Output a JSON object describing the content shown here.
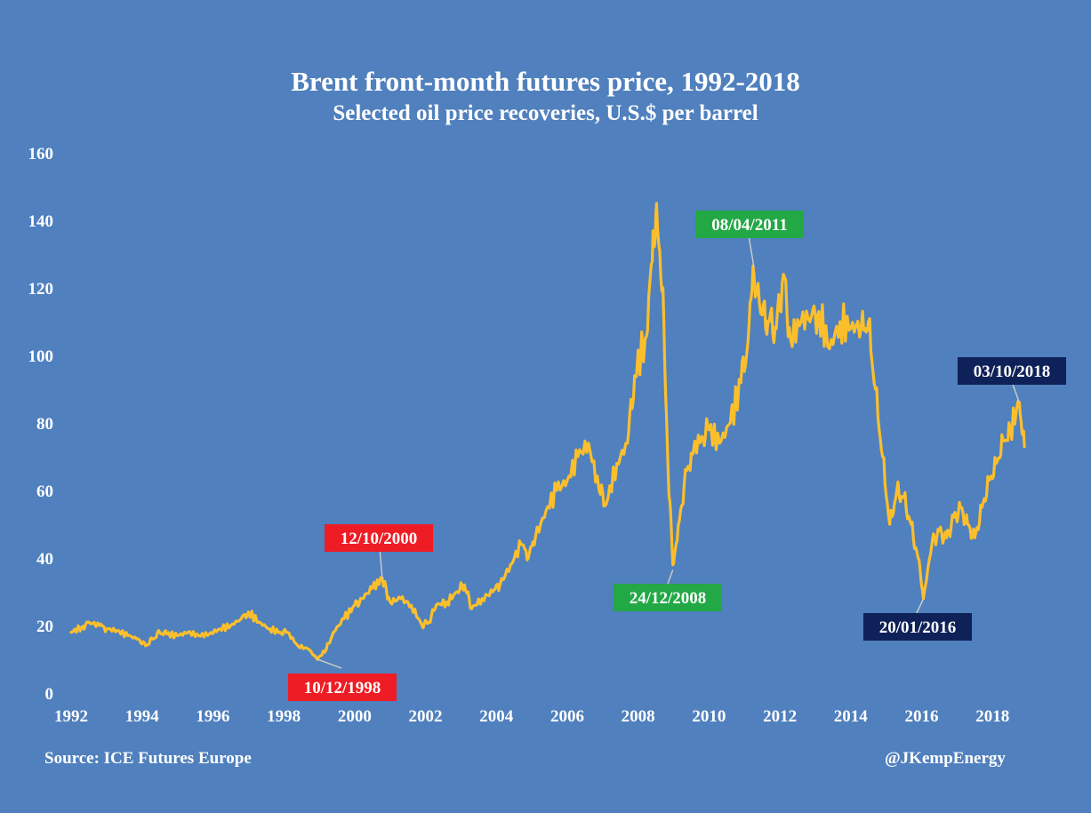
{
  "header": {
    "title": "Brent front-month futures price, 1992-2018",
    "subtitle": "Selected oil price recoveries, U.S.$ per barrel"
  },
  "footer": {
    "source": "Source: ICE Futures Europe",
    "credit": "@JKempEnergy"
  },
  "colors": {
    "background": "#5080bd",
    "line": "#fcbf2c",
    "red": "#ee1c24",
    "green": "#22a845",
    "navy": "#0e2158",
    "text": "#ffffff",
    "leader": "#c9c9c9"
  },
  "chart_data": {
    "type": "line",
    "title": "Brent front-month futures price, 1992-2018",
    "subtitle": "Selected oil price recoveries, U.S.$ per barrel",
    "xlabel": "",
    "ylabel": "",
    "xlim": [
      1992,
      2019.5
    ],
    "ylim": [
      0,
      160
    ],
    "x_ticks": [
      "1992",
      "1994",
      "1996",
      "1998",
      "2000",
      "2002",
      "2004",
      "2006",
      "2008",
      "2010",
      "2012",
      "2014",
      "2016",
      "2018"
    ],
    "y_ticks": [
      "0",
      "20",
      "40",
      "60",
      "80",
      "100",
      "120",
      "140",
      "160"
    ],
    "grid": false,
    "series": [
      {
        "x": [
          1992.0,
          1992.3,
          1992.5,
          1992.8,
          1993.0,
          1993.3,
          1993.6,
          1993.9,
          1994.1,
          1994.3,
          1994.5,
          1994.7,
          1995.0,
          1995.3,
          1995.6,
          1995.9,
          1996.2,
          1996.5,
          1996.8,
          1997.0,
          1997.3,
          1997.6,
          1997.9,
          1998.1,
          1998.4,
          1998.7,
          1998.95,
          1999.2,
          1999.4,
          1999.7,
          2000.0,
          2000.2,
          2000.5,
          2000.78,
          2001.0,
          2001.3,
          2001.6,
          2001.9,
          2002.1,
          2002.3,
          2002.6,
          2002.9,
          2003.1,
          2003.3,
          2003.6,
          2003.9,
          2004.1,
          2004.4,
          2004.7,
          2004.9,
          2005.1,
          2005.4,
          2005.7,
          2006.0,
          2006.3,
          2006.6,
          2006.9,
          2007.1,
          2007.4,
          2007.7,
          2007.9,
          2008.2,
          2008.4,
          2008.52,
          2008.7,
          2008.85,
          2008.98,
          2009.1,
          2009.3,
          2009.5,
          2009.8,
          2010.0,
          2010.3,
          2010.6,
          2010.9,
          2011.1,
          2011.27,
          2011.5,
          2011.7,
          2011.9,
          2012.1,
          2012.3,
          2012.6,
          2012.9,
          2013.1,
          2013.4,
          2013.7,
          2014.0,
          2014.3,
          2014.5,
          2014.7,
          2014.9,
          2015.1,
          2015.3,
          2015.5,
          2015.7,
          2015.9,
          2016.05,
          2016.3,
          2016.5,
          2016.7,
          2016.9,
          2017.1,
          2017.3,
          2017.5,
          2017.7,
          2017.9,
          2018.1,
          2018.3,
          2018.5,
          2018.76,
          2018.9
        ],
        "values": [
          18.0,
          19.5,
          21.0,
          20.0,
          19.0,
          18.5,
          17.0,
          16.0,
          14.0,
          16.0,
          18.0,
          17.5,
          17.0,
          18.0,
          17.0,
          17.5,
          19.0,
          20.0,
          22.0,
          24.0,
          21.0,
          19.0,
          18.0,
          18.0,
          14.0,
          13.0,
          10.0,
          13.0,
          18.0,
          22.0,
          26.0,
          28.0,
          31.0,
          34.0,
          27.0,
          28.0,
          26.0,
          20.0,
          21.0,
          26.0,
          27.0,
          30.0,
          32.0,
          25.0,
          28.0,
          30.0,
          32.0,
          38.0,
          44.0,
          40.0,
          46.0,
          54.0,
          60.0,
          63.0,
          70.0,
          74.0,
          60.0,
          56.0,
          68.0,
          74.0,
          94.0,
          105.0,
          128.0,
          145.0,
          120.0,
          65.0,
          38.0,
          45.0,
          62.0,
          71.0,
          76.0,
          78.0,
          74.0,
          80.0,
          92.0,
          104.0,
          124.0,
          112.0,
          110.0,
          108.0,
          124.0,
          105.0,
          110.0,
          112.0,
          113.0,
          102.0,
          110.0,
          108.0,
          109.0,
          110.0,
          90.0,
          70.0,
          50.0,
          60.0,
          58.0,
          50.0,
          40.0,
          28.0,
          45.0,
          48.0,
          46.0,
          52.0,
          55.0,
          50.0,
          46.0,
          55.0,
          63.0,
          68.0,
          75.0,
          78.0,
          86.0,
          73.0
        ]
      }
    ],
    "annotations": [
      {
        "label": "10/12/1998",
        "x": 1998.95,
        "y": 10.0,
        "color": "red"
      },
      {
        "label": "12/10/2000",
        "x": 2000.78,
        "y": 34.0,
        "color": "red"
      },
      {
        "label": "24/12/2008",
        "x": 2008.98,
        "y": 36.5,
        "color": "green"
      },
      {
        "label": "08/04/2011",
        "x": 2011.27,
        "y": 126.0,
        "color": "green"
      },
      {
        "label": "20/01/2016",
        "x": 2016.05,
        "y": 27.9,
        "color": "navy"
      },
      {
        "label": "03/10/2018",
        "x": 2018.76,
        "y": 86.0,
        "color": "navy"
      }
    ]
  }
}
